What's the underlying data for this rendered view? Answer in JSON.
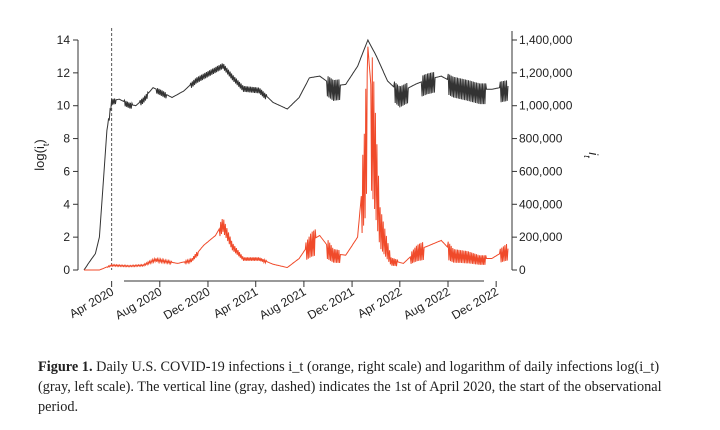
{
  "chart_data": {
    "type": "line",
    "x_tick_labels": [
      "Apr 2020",
      "Aug 2020",
      "Dec 2020",
      "Apr 2021",
      "Aug 2021",
      "Dec 2021",
      "Apr 2022",
      "Aug 2022",
      "Dec 2022"
    ],
    "x_ticks": [
      "2020-04-01",
      "2020-08-01",
      "2020-12-01",
      "2021-04-01",
      "2021-08-01",
      "2021-12-01",
      "2022-04-01",
      "2022-08-01",
      "2022-12-01"
    ],
    "xlim": [
      "2020-01-22",
      "2022-12-31"
    ],
    "left_axis": {
      "label": "log(i_t)",
      "ylim": [
        0,
        14
      ],
      "tick_labels": [
        "0",
        "2",
        "4",
        "6",
        "8",
        "10",
        "12",
        "14"
      ]
    },
    "right_axis": {
      "label": "i_t",
      "ylim": [
        0,
        1400000
      ],
      "tick_labels": [
        "0",
        "200,000",
        "400,000",
        "600,000",
        "800,000",
        "1,000,000",
        "1,200,000",
        "1,400,000"
      ]
    },
    "vline": {
      "x": "2020-04-01",
      "color": "#555555",
      "style": "dashed"
    },
    "series": [
      {
        "axis": "left",
        "color": "#333333",
        "points": [
          [
            "2020-01-22",
            0
          ],
          [
            "2020-02-05",
            0.5
          ],
          [
            "2020-02-20",
            1
          ],
          [
            "2020-03-01",
            2
          ],
          [
            "2020-03-10",
            5
          ],
          [
            "2020-03-20",
            8.5
          ],
          [
            "2020-04-01",
            10.3
          ],
          [
            "2020-04-20",
            10.4
          ],
          [
            "2020-05-15",
            10.1
          ],
          [
            "2020-06-01",
            10.0
          ],
          [
            "2020-06-20",
            10.4
          ],
          [
            "2020-07-15",
            11.1
          ],
          [
            "2020-08-01",
            10.9
          ],
          [
            "2020-09-01",
            10.5
          ],
          [
            "2020-10-01",
            10.9
          ],
          [
            "2020-11-01",
            11.6
          ],
          [
            "2020-12-01",
            12.0
          ],
          [
            "2021-01-08",
            12.5
          ],
          [
            "2021-02-01",
            11.8
          ],
          [
            "2021-03-01",
            11.1
          ],
          [
            "2021-04-10",
            11.0
          ],
          [
            "2021-05-15",
            10.2
          ],
          [
            "2021-06-20",
            9.8
          ],
          [
            "2021-07-20",
            10.5
          ],
          [
            "2021-08-15",
            11.7
          ],
          [
            "2021-09-10",
            11.8
          ],
          [
            "2021-10-15",
            11.2
          ],
          [
            "2021-11-15",
            11.3
          ],
          [
            "2021-12-15",
            12.4
          ],
          [
            "2022-01-10",
            14.0
          ],
          [
            "2022-02-01",
            13.0
          ],
          [
            "2022-03-01",
            11.5
          ],
          [
            "2022-04-01",
            10.8
          ],
          [
            "2022-05-10",
            11.3
          ],
          [
            "2022-06-10",
            11.6
          ],
          [
            "2022-07-15",
            11.8
          ],
          [
            "2022-08-15",
            11.4
          ],
          [
            "2022-09-20",
            11.2
          ],
          [
            "2022-10-20",
            11.0
          ],
          [
            "2022-11-20",
            11.0
          ],
          [
            "2022-12-31",
            11.2
          ]
        ]
      },
      {
        "axis": "right",
        "color": "#f04a2a",
        "points": [
          [
            "2020-01-22",
            0
          ],
          [
            "2020-03-01",
            0
          ],
          [
            "2020-04-01",
            30000
          ],
          [
            "2020-05-15",
            25000
          ],
          [
            "2020-06-20",
            30000
          ],
          [
            "2020-07-20",
            65000
          ],
          [
            "2020-08-15",
            55000
          ],
          [
            "2020-09-15",
            40000
          ],
          [
            "2020-10-20",
            60000
          ],
          [
            "2020-11-20",
            150000
          ],
          [
            "2020-12-20",
            210000
          ],
          [
            "2021-01-08",
            290000
          ],
          [
            "2021-02-01",
            150000
          ],
          [
            "2021-03-01",
            70000
          ],
          [
            "2021-04-10",
            70000
          ],
          [
            "2021-05-15",
            35000
          ],
          [
            "2021-06-20",
            15000
          ],
          [
            "2021-07-20",
            70000
          ],
          [
            "2021-08-20",
            180000
          ],
          [
            "2021-09-10",
            210000
          ],
          [
            "2021-10-15",
            100000
          ],
          [
            "2021-11-15",
            90000
          ],
          [
            "2021-12-15",
            200000
          ],
          [
            "2022-01-03",
            700000
          ],
          [
            "2022-01-10",
            1360000
          ],
          [
            "2022-01-25",
            900000
          ],
          [
            "2022-02-10",
            300000
          ],
          [
            "2022-03-10",
            60000
          ],
          [
            "2022-04-10",
            40000
          ],
          [
            "2022-05-15",
            120000
          ],
          [
            "2022-06-15",
            150000
          ],
          [
            "2022-07-15",
            180000
          ],
          [
            "2022-08-15",
            100000
          ],
          [
            "2022-09-20",
            90000
          ],
          [
            "2022-10-20",
            70000
          ],
          [
            "2022-11-20",
            70000
          ],
          [
            "2022-12-31",
            130000
          ]
        ]
      }
    ]
  },
  "caption": {
    "label": "Figure 1.",
    "text": " Daily U.S. COVID-19 infections i_t (orange, right scale) and logarithm of daily infections log(i_t) (gray, left scale). The vertical line (gray, dashed) indicates the 1st of April 2020, the start of the observational period."
  }
}
